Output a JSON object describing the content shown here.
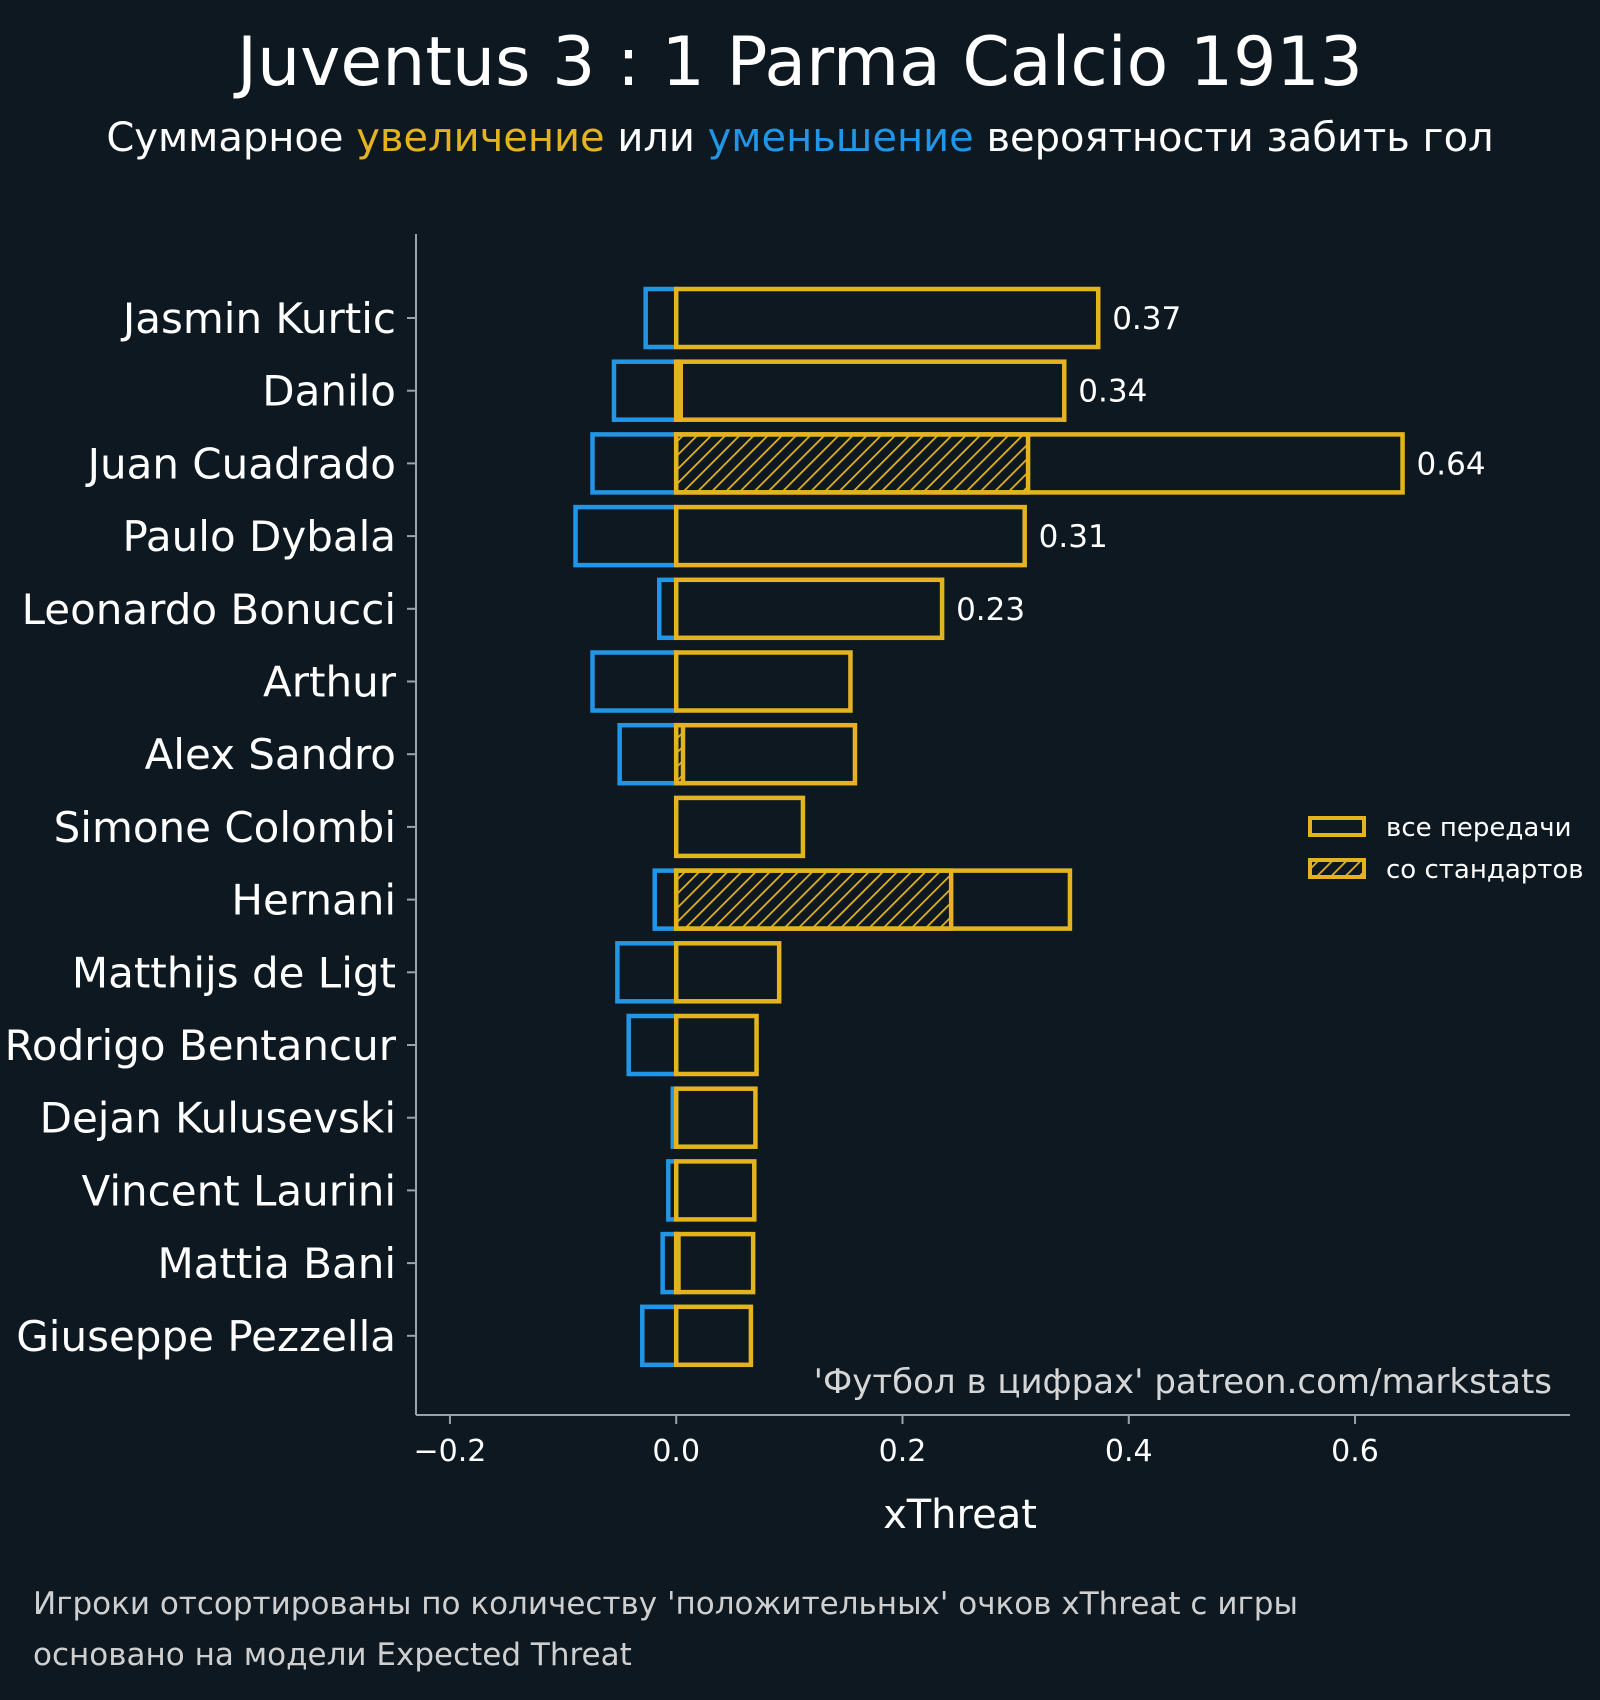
{
  "title": "Juventus 3 : 1 Parma Calcio 1913",
  "subtitle": {
    "prefix": "Суммарное ",
    "increase": "увеличение",
    "middle": " или ",
    "decrease": "уменьшение",
    "suffix": " вероятности забить гол"
  },
  "colors": {
    "background": "#0e1821",
    "increase": "#e3b320",
    "decrease": "#2196e6",
    "axis": "#9aa3aa"
  },
  "watermark": "'Футбол в цифрах' patreon.com/markstats",
  "footer": [
    "Игроки отсортированы по количеству 'положительных' очков xThreat с игры",
    "основано на модели Expected Threat"
  ],
  "chart_data": {
    "type": "bar",
    "orientation": "horizontal",
    "xlabel": "xThreat",
    "xlim": [
      -0.23,
      0.79
    ],
    "xticks": [
      -0.2,
      0.0,
      0.2,
      0.4,
      0.6
    ],
    "xtick_labels": [
      "−0.2",
      "0.0",
      "0.2",
      "0.4",
      "0.6"
    ],
    "legend": {
      "placement": "right",
      "entries": [
        "все передачи",
        "со стандартов"
      ]
    },
    "categories": [
      "Jasmin Kurtic",
      "Danilo",
      "Juan Cuadrado",
      "Paulo Dybala",
      "Leonardo Bonucci",
      "Arthur",
      "Alex Sandro",
      "Simone Colombi",
      "Hernani",
      "Matthijs de Ligt",
      "Rodrigo Bentancur",
      "Dejan Kulusevski",
      "Vincent Laurini",
      "Mattia Bani",
      "Giuseppe Pezzella"
    ],
    "series": [
      {
        "name": "все передачи",
        "kind": "positive",
        "values": [
          0.373,
          0.343,
          0.642,
          0.308,
          0.235,
          0.154,
          0.158,
          0.112,
          0.348,
          0.091,
          0.071,
          0.07,
          0.069,
          0.068,
          0.066
        ]
      },
      {
        "name": "со стандартов",
        "kind": "set-pieces",
        "values": [
          0.0,
          0.004,
          0.311,
          0.0,
          0.0,
          0.0,
          0.006,
          0.0,
          0.243,
          0.0,
          0.0,
          0.0,
          0.0,
          0.002,
          0.0
        ]
      },
      {
        "kind": "negative",
        "values": [
          -0.027,
          -0.055,
          -0.074,
          -0.089,
          -0.015,
          -0.074,
          -0.05,
          0.0,
          -0.019,
          -0.052,
          -0.042,
          -0.003,
          -0.007,
          -0.012,
          -0.03
        ]
      }
    ],
    "value_labels": [
      "0.37",
      "0.34",
      "0.64",
      "0.31",
      "0.23",
      "",
      "",
      "",
      "",
      "",
      "",
      "",
      "",
      "",
      ""
    ]
  }
}
